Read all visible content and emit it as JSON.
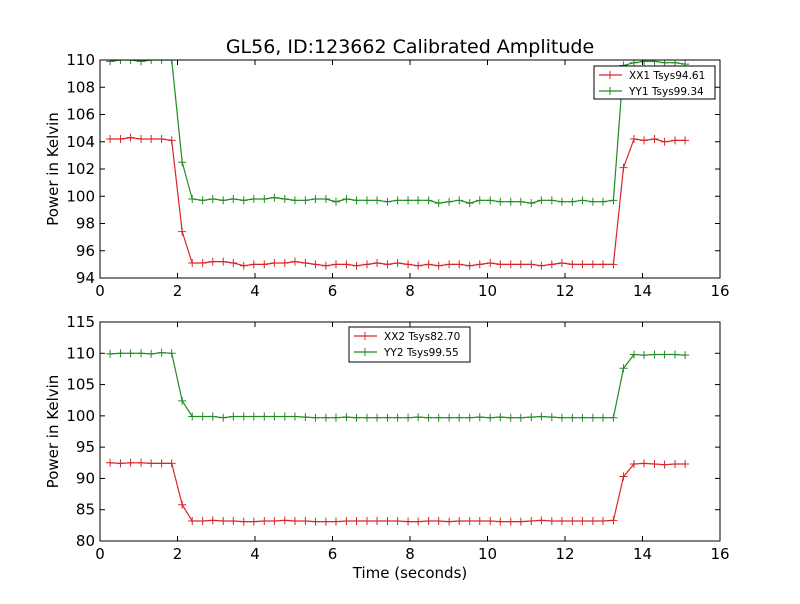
{
  "figure": {
    "title": "GL56, ID:123662 Calibrated Amplitude"
  },
  "chart_data": [
    {
      "type": "line",
      "xlabel": "",
      "ylabel": "Power in Kelvin",
      "xlim": [
        0,
        16
      ],
      "ylim": [
        94,
        110
      ],
      "xticks": [
        0,
        2,
        4,
        6,
        8,
        10,
        12,
        14,
        16
      ],
      "yticks": [
        94,
        96,
        98,
        100,
        102,
        104,
        106,
        108,
        110
      ],
      "grid": false,
      "legend_position": "top-right",
      "x": [
        0.26,
        0.53,
        0.79,
        1.06,
        1.32,
        1.59,
        1.85,
        2.12,
        2.38,
        2.65,
        2.91,
        3.18,
        3.44,
        3.71,
        3.97,
        4.24,
        4.5,
        4.77,
        5.03,
        5.3,
        5.56,
        5.83,
        6.09,
        6.36,
        6.62,
        6.89,
        7.15,
        7.42,
        7.68,
        7.95,
        8.21,
        8.48,
        8.74,
        9.01,
        9.27,
        9.54,
        9.8,
        10.07,
        10.33,
        10.6,
        10.86,
        11.13,
        11.39,
        11.66,
        11.92,
        12.19,
        12.45,
        12.72,
        12.98,
        13.25,
        13.51,
        13.78,
        14.04,
        14.31,
        14.57,
        14.84,
        15.1
      ],
      "series": [
        {
          "name": "XX1 Tsys94.61",
          "color": "#d62728",
          "values": [
            104.2,
            104.2,
            104.3,
            104.2,
            104.2,
            104.2,
            104.1,
            97.4,
            95.1,
            95.1,
            95.2,
            95.2,
            95.1,
            94.9,
            95.0,
            95.0,
            95.1,
            95.1,
            95.2,
            95.1,
            95.0,
            94.9,
            95.0,
            95.0,
            94.9,
            95.0,
            95.1,
            95.0,
            95.1,
            95.0,
            94.9,
            95.0,
            94.9,
            95.0,
            95.0,
            94.9,
            95.0,
            95.1,
            95.0,
            95.0,
            95.0,
            95.0,
            94.9,
            95.0,
            95.1,
            95.0,
            95.0,
            95.0,
            95.0,
            95.0,
            102.1,
            104.2,
            104.1,
            104.2,
            104.0,
            104.1,
            104.1
          ]
        },
        {
          "name": "YY1 Tsys99.34",
          "color": "#228b22",
          "values": [
            109.9,
            110.0,
            110.0,
            109.9,
            110.0,
            110.0,
            110.0,
            102.5,
            99.8,
            99.7,
            99.8,
            99.7,
            99.8,
            99.7,
            99.8,
            99.8,
            99.9,
            99.8,
            99.7,
            99.7,
            99.8,
            99.8,
            99.6,
            99.8,
            99.7,
            99.7,
            99.7,
            99.6,
            99.7,
            99.7,
            99.7,
            99.7,
            99.5,
            99.6,
            99.7,
            99.5,
            99.7,
            99.7,
            99.6,
            99.6,
            99.6,
            99.5,
            99.7,
            99.7,
            99.6,
            99.6,
            99.7,
            99.6,
            99.6,
            99.7,
            109.6,
            109.8,
            109.9,
            109.9,
            109.8,
            109.8,
            109.7
          ]
        }
      ]
    },
    {
      "type": "line",
      "xlabel": "Time (seconds)",
      "ylabel": "Power in Kelvin",
      "xlim": [
        0,
        16
      ],
      "ylim": [
        80,
        115
      ],
      "xticks": [
        0,
        2,
        4,
        6,
        8,
        10,
        12,
        14,
        16
      ],
      "yticks": [
        80,
        85,
        90,
        95,
        100,
        105,
        110,
        115
      ],
      "grid": false,
      "legend_position": "top-center",
      "x": [
        0.26,
        0.53,
        0.79,
        1.06,
        1.32,
        1.59,
        1.85,
        2.12,
        2.38,
        2.65,
        2.91,
        3.18,
        3.44,
        3.71,
        3.97,
        4.24,
        4.5,
        4.77,
        5.03,
        5.3,
        5.56,
        5.83,
        6.09,
        6.36,
        6.62,
        6.89,
        7.15,
        7.42,
        7.68,
        7.95,
        8.21,
        8.48,
        8.74,
        9.01,
        9.27,
        9.54,
        9.8,
        10.07,
        10.33,
        10.6,
        10.86,
        11.13,
        11.39,
        11.66,
        11.92,
        12.19,
        12.45,
        12.72,
        12.98,
        13.25,
        13.51,
        13.78,
        14.04,
        14.31,
        14.57,
        14.84,
        15.1
      ],
      "series": [
        {
          "name": "XX2 Tsys82.70",
          "color": "#d62728",
          "values": [
            92.5,
            92.4,
            92.5,
            92.5,
            92.4,
            92.4,
            92.4,
            85.8,
            83.2,
            83.2,
            83.3,
            83.2,
            83.2,
            83.1,
            83.1,
            83.2,
            83.2,
            83.3,
            83.2,
            83.2,
            83.1,
            83.1,
            83.1,
            83.2,
            83.2,
            83.2,
            83.2,
            83.2,
            83.2,
            83.1,
            83.1,
            83.2,
            83.2,
            83.1,
            83.2,
            83.2,
            83.2,
            83.2,
            83.1,
            83.1,
            83.1,
            83.2,
            83.3,
            83.2,
            83.2,
            83.2,
            83.2,
            83.2,
            83.2,
            83.3,
            90.3,
            92.3,
            92.4,
            92.3,
            92.2,
            92.3,
            92.3
          ]
        },
        {
          "name": "YY2 Tsys99.55",
          "color": "#228b22",
          "values": [
            109.9,
            110.0,
            110.0,
            110.0,
            109.9,
            110.1,
            110.0,
            102.4,
            99.9,
            99.9,
            99.9,
            99.7,
            99.9,
            99.9,
            99.9,
            99.9,
            99.9,
            99.9,
            99.9,
            99.8,
            99.7,
            99.7,
            99.7,
            99.8,
            99.7,
            99.7,
            99.7,
            99.7,
            99.7,
            99.7,
            99.8,
            99.7,
            99.7,
            99.7,
            99.7,
            99.7,
            99.8,
            99.7,
            99.8,
            99.7,
            99.7,
            99.8,
            99.9,
            99.8,
            99.7,
            99.7,
            99.7,
            99.7,
            99.7,
            99.7,
            107.6,
            109.8,
            109.7,
            109.8,
            109.8,
            109.8,
            109.7
          ]
        }
      ]
    }
  ]
}
